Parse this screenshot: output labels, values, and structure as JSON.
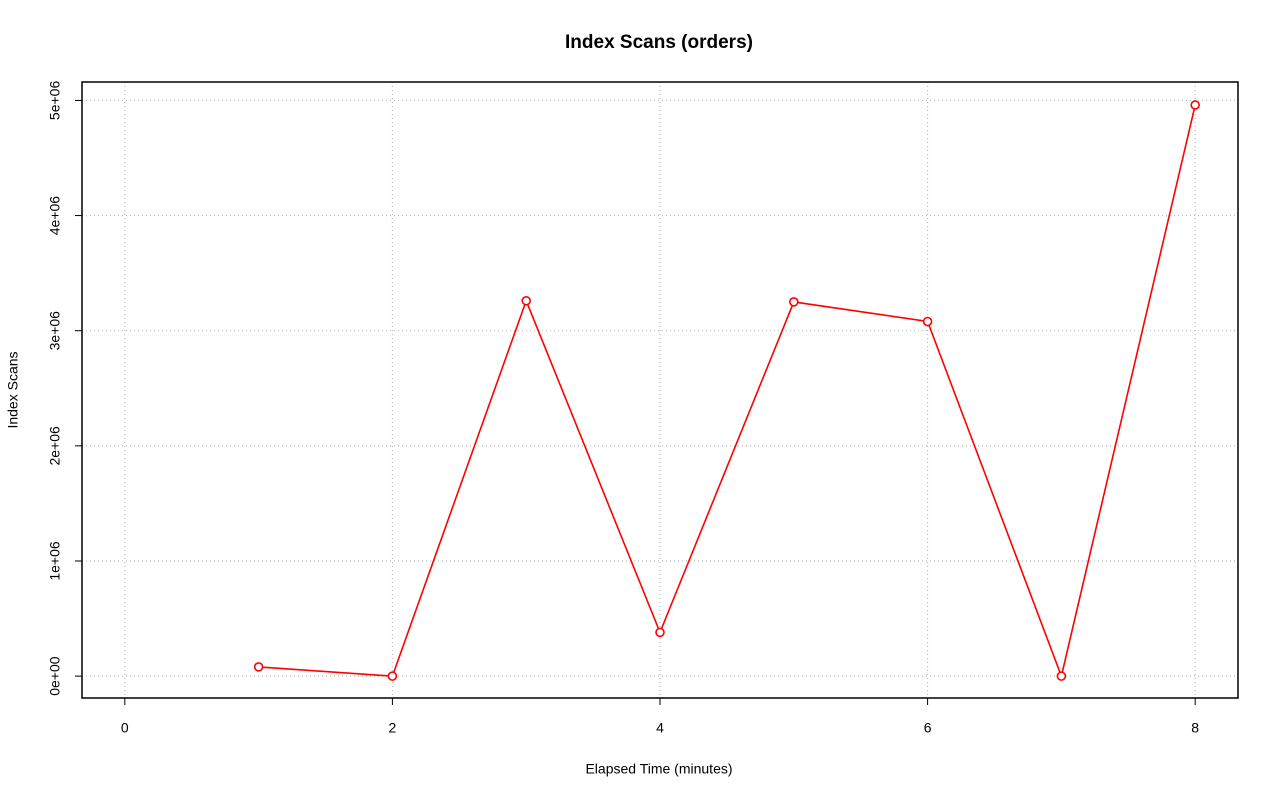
{
  "chart_data": {
    "type": "line",
    "title": "Index Scans (orders)",
    "x_label": "Elapsed Time (minutes)",
    "y_label": "Index Scans",
    "x": [
      1,
      2,
      3,
      4,
      5,
      6,
      7,
      8
    ],
    "values": [
      80000,
      0,
      3260000,
      380000,
      3250000,
      3080000,
      0,
      4960000
    ],
    "color": "#ff0000",
    "xlim": [
      -0.32,
      8.32
    ],
    "xticks": [
      0,
      2,
      4,
      6,
      8
    ],
    "ylim": [
      -190000,
      5160000
    ],
    "yticks": [
      {
        "value": 0,
        "label": "0e+00"
      },
      {
        "value": 1000000,
        "label": "1e+06"
      },
      {
        "value": 2000000,
        "label": "2e+06"
      },
      {
        "value": 3000000,
        "label": "3e+06"
      },
      {
        "value": 4000000,
        "label": "4e+06"
      },
      {
        "value": 5000000,
        "label": "5e+06"
      }
    ],
    "grid": true
  }
}
